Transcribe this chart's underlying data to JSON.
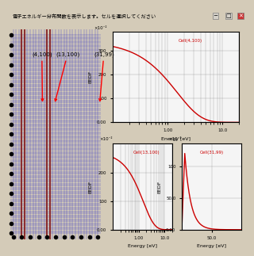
{
  "title_bar": "電子エネルギー分布関数を表示します。セルを選択してください",
  "bg_color": "#d4cbb8",
  "annotations": [
    "(4,100)",
    "(13,100)",
    "(31,99)"
  ],
  "grid_bg": "#3333ff",
  "plot1_title": "Cell(4,100)",
  "plot2_title": "Cell(13,100)",
  "plot3_title": "Cell(31,99)",
  "plot_bg": "#f5f5f5",
  "curve_color": "#cc0000",
  "ylabel": "EEDF",
  "xlabel": "Energy [eV]"
}
